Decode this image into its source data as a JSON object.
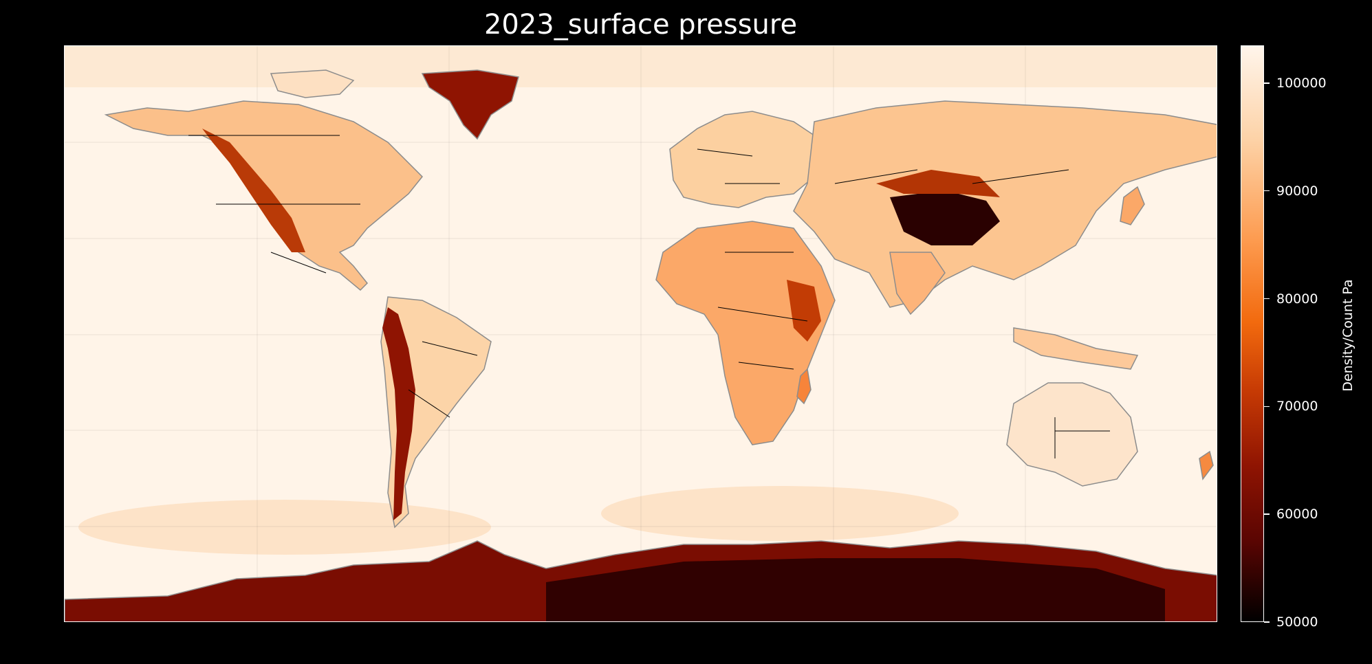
{
  "title": "2023_surface pressure",
  "colorbar": {
    "label": "Density/Count Pa",
    "min": 50000,
    "max": 103500,
    "ticks": [
      "100000",
      "90000",
      "80000",
      "70000",
      "60000",
      "50000"
    ],
    "tick_values": [
      100000,
      90000,
      80000,
      70000,
      60000,
      50000
    ],
    "colormap": "Oranges (inverted)",
    "colors": [
      "#fff5eb",
      "#fdd3a8",
      "#fd9a4e",
      "#f26a0e",
      "#c63a04",
      "#8f1402",
      "#5a0502",
      "#000000"
    ]
  },
  "map": {
    "projection": "equirectangular",
    "lon_range": [
      -180,
      180
    ],
    "lat_range": [
      -90,
      90
    ],
    "gridlines": true,
    "land_outline_color": "#8c8c8c",
    "border_color": "#000000",
    "ocean_color": "#fff5ea"
  }
}
